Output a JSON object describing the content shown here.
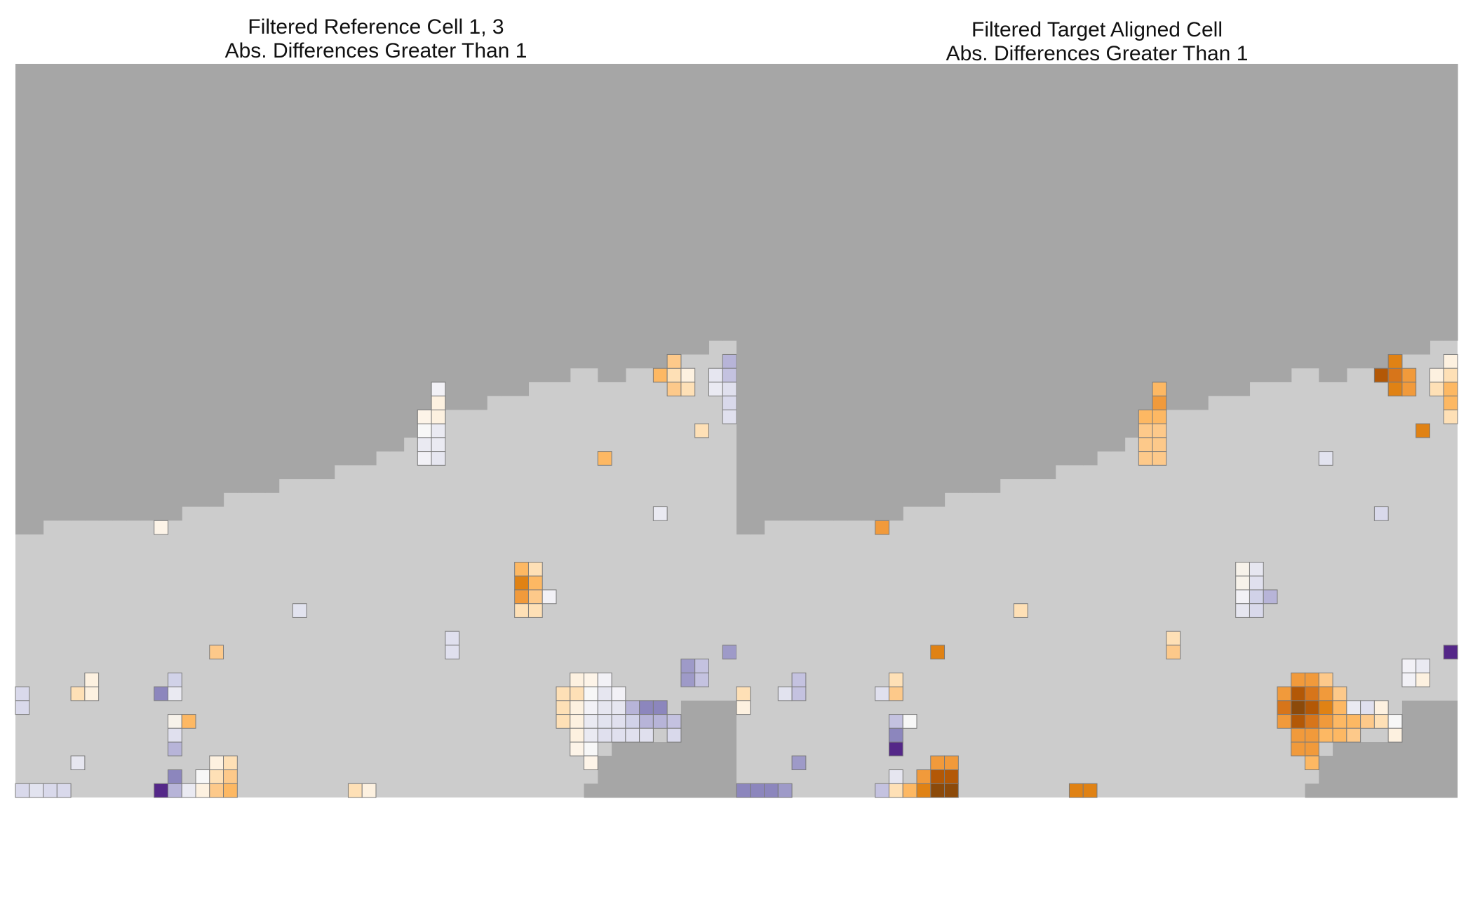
{
  "chart_data": [
    {
      "type": "heatmap",
      "title": [
        "Filtered Reference Cell 1, 3",
        "Abs. Differences Greater Than 1"
      ],
      "ncols": 52,
      "nrows": 53,
      "colors": {
        "outside": "#a6a6a6",
        "within": "#cccccc",
        "cell_border": "#7a7a7a"
      },
      "outside_profile": [
        34,
        34,
        33,
        33,
        33,
        33,
        33,
        33,
        33,
        33,
        33,
        33,
        32,
        32,
        32,
        31,
        31,
        31,
        31,
        30,
        30,
        30,
        30,
        29,
        29,
        29,
        28,
        28,
        27,
        26,
        26,
        25,
        25,
        25,
        24,
        24,
        24,
        23,
        23,
        23,
        22,
        22,
        23,
        23,
        22,
        22,
        22,
        22,
        21,
        21,
        20,
        20
      ],
      "bottom_outside": [
        [
          41,
          51,
          52
        ],
        [
          42,
          51,
          50
        ],
        [
          43,
          51,
          49
        ],
        [
          44,
          51,
          49
        ],
        [
          45,
          51,
          49
        ],
        [
          46,
          51,
          49
        ],
        [
          47,
          51,
          48
        ],
        [
          48,
          51,
          46
        ]
      ],
      "cells": [
        [
          0,
          45,
          "#d9d9eb"
        ],
        [
          0,
          46,
          "#d9d9eb"
        ],
        [
          4,
          45,
          "#fee0b6"
        ],
        [
          5,
          45,
          "#fdf1e0"
        ],
        [
          5,
          44,
          "#fdf1e0"
        ],
        [
          0,
          52,
          "#d9d9eb"
        ],
        [
          1,
          52,
          "#e2e3ef"
        ],
        [
          2,
          52,
          "#d9d9eb"
        ],
        [
          3,
          52,
          "#d9d9eb"
        ],
        [
          4,
          50,
          "#e6e6f0"
        ],
        [
          10,
          33,
          "#fdf4e8"
        ],
        [
          10,
          45,
          "#8c86bd"
        ],
        [
          11,
          45,
          "#eaeaf2"
        ],
        [
          11,
          44,
          "#d1d2e8"
        ],
        [
          11,
          47,
          "#f7f2ea"
        ],
        [
          11,
          48,
          "#e0e0ee"
        ],
        [
          11,
          49,
          "#b7b4d8"
        ],
        [
          12,
          47,
          "#fdb863"
        ],
        [
          10,
          52,
          "#542788"
        ],
        [
          11,
          52,
          "#b7b4d8"
        ],
        [
          11,
          51,
          "#8c86bd"
        ],
        [
          12,
          52,
          "#eaeaf2"
        ],
        [
          13,
          52,
          "#fdf1e0"
        ],
        [
          13,
          51,
          "#f7f7f7"
        ],
        [
          14,
          52,
          "#fdc98a"
        ],
        [
          14,
          51,
          "#fee0b6"
        ],
        [
          14,
          50,
          "#fdf1e0"
        ],
        [
          15,
          52,
          "#fdb863"
        ],
        [
          15,
          51,
          "#fdc98a"
        ],
        [
          15,
          50,
          "#fee0b6"
        ],
        [
          14,
          42,
          "#fdc98a"
        ],
        [
          20,
          39,
          "#e2e3ef"
        ],
        [
          24,
          52,
          "#fee0b6"
        ],
        [
          25,
          52,
          "#fdf1e0"
        ],
        [
          29,
          25,
          "#fdf4e8"
        ],
        [
          30,
          25,
          "#fdf4e8"
        ],
        [
          29,
          26,
          "#f7f7f7"
        ],
        [
          30,
          26,
          "#eaeaf2"
        ],
        [
          29,
          27,
          "#eaeaf2"
        ],
        [
          30,
          27,
          "#eaeaf2"
        ],
        [
          29,
          28,
          "#f2f1f6"
        ],
        [
          30,
          28,
          "#e6e6f0"
        ],
        [
          30,
          25,
          "#fdf1e0"
        ],
        [
          30,
          24,
          "#fdf4e8"
        ],
        [
          30,
          25,
          "#fdf1e0"
        ],
        [
          30,
          24,
          "#fdf4e8"
        ],
        [
          30,
          25,
          "#fdf1e0"
        ],
        [
          29,
          25,
          "#fdf4e8"
        ],
        [
          30,
          25,
          "#fdf1e0"
        ],
        [
          30,
          25,
          "#fdf1e0"
        ],
        [
          30,
          23,
          "#f2f1f6"
        ],
        [
          30,
          24,
          "#fdf1e0"
        ],
        [
          31,
          41,
          "#e0e0ee"
        ],
        [
          31,
          42,
          "#e0e0ee"
        ],
        [
          36,
          36,
          "#fdb863"
        ],
        [
          36,
          37,
          "#e08214"
        ],
        [
          36,
          38,
          "#f19a3b"
        ],
        [
          36,
          39,
          "#fee0b6"
        ],
        [
          37,
          36,
          "#fee0b6"
        ],
        [
          37,
          37,
          "#fdb863"
        ],
        [
          37,
          38,
          "#fdc98a"
        ],
        [
          37,
          39,
          "#fee0b6"
        ],
        [
          38,
          38,
          "#f2f1f6"
        ],
        [
          42,
          28,
          "#fdb863"
        ],
        [
          39,
          45,
          "#fee0b6"
        ],
        [
          39,
          46,
          "#fee0b6"
        ],
        [
          39,
          47,
          "#fee0b6"
        ],
        [
          40,
          44,
          "#fdf1e0"
        ],
        [
          40,
          45,
          "#fee0b6"
        ],
        [
          40,
          46,
          "#fdf1e0"
        ],
        [
          40,
          47,
          "#fdf1e0"
        ],
        [
          40,
          48,
          "#fdf1e0"
        ],
        [
          40,
          49,
          "#fdf4e8"
        ],
        [
          41,
          44,
          "#fdf4e8"
        ],
        [
          41,
          45,
          "#f7f7f7"
        ],
        [
          41,
          46,
          "#f2f1f6"
        ],
        [
          41,
          47,
          "#eaeaf2"
        ],
        [
          41,
          48,
          "#eaeaf2"
        ],
        [
          41,
          49,
          "#f7f7f7"
        ],
        [
          41,
          50,
          "#fdf4e8"
        ],
        [
          42,
          44,
          "#f2f1f6"
        ],
        [
          42,
          45,
          "#e6e6f0"
        ],
        [
          42,
          46,
          "#e6e6f0"
        ],
        [
          42,
          47,
          "#e2e3ef"
        ],
        [
          42,
          48,
          "#e0e0ee"
        ],
        [
          43,
          45,
          "#f2f1f6"
        ],
        [
          43,
          46,
          "#e6e6f0"
        ],
        [
          43,
          47,
          "#e0e0ee"
        ],
        [
          43,
          48,
          "#e0e0ee"
        ],
        [
          44,
          46,
          "#b7b4d8"
        ],
        [
          44,
          47,
          "#d1d2e8"
        ],
        [
          44,
          48,
          "#e0e0ee"
        ],
        [
          45,
          46,
          "#8c86bd"
        ],
        [
          45,
          47,
          "#b7b4d8"
        ],
        [
          45,
          48,
          "#e0e0ee"
        ],
        [
          46,
          46,
          "#8c86bd"
        ],
        [
          46,
          47,
          "#b7b4d8"
        ],
        [
          47,
          47,
          "#c4c2e0"
        ],
        [
          47,
          48,
          "#d9d9eb"
        ],
        [
          46,
          22,
          "#fdb863"
        ],
        [
          47,
          22,
          "#fee0b6"
        ],
        [
          47,
          21,
          "#fdc98a"
        ],
        [
          47,
          23,
          "#fdc98a"
        ],
        [
          48,
          22,
          "#fdf1e0"
        ],
        [
          48,
          23,
          "#fee0b6"
        ],
        [
          46,
          32,
          "#eaeaf2"
        ],
        [
          48,
          43,
          "#9e9ac8"
        ],
        [
          49,
          43,
          "#c4c2e0"
        ],
        [
          48,
          44,
          "#9e9ac8"
        ],
        [
          49,
          44,
          "#c4c2e0"
        ],
        [
          49,
          26,
          "#fee0b6"
        ],
        [
          51,
          42,
          "#9e9ac8"
        ],
        [
          50,
          22,
          "#e6e6f0"
        ],
        [
          50,
          23,
          "#eaeaf2"
        ],
        [
          51,
          21,
          "#b7b4d8"
        ],
        [
          51,
          22,
          "#c4c2e0"
        ],
        [
          51,
          23,
          "#e0e0ee"
        ],
        [
          51,
          24,
          "#d9d9eb"
        ],
        [
          51,
          25,
          "#e0e0ee"
        ]
      ]
    },
    {
      "type": "heatmap",
      "title": [
        "Filtered Target Aligned Cell",
        "Abs. Differences Greater Than 1"
      ],
      "ncols": 52,
      "nrows": 53,
      "colors": {
        "outside": "#a6a6a6",
        "within": "#cccccc",
        "cell_border": "#7a7a7a"
      },
      "outside_profile": [
        34,
        34,
        33,
        33,
        33,
        33,
        33,
        33,
        33,
        33,
        33,
        33,
        32,
        32,
        32,
        31,
        31,
        31,
        31,
        30,
        30,
        30,
        30,
        29,
        29,
        29,
        28,
        28,
        27,
        26,
        26,
        25,
        25,
        25,
        24,
        24,
        24,
        23,
        23,
        23,
        22,
        22,
        23,
        23,
        22,
        22,
        22,
        22,
        21,
        21,
        20,
        20
      ],
      "bottom_outside": [
        [
          41,
          51,
          52
        ],
        [
          42,
          51,
          50
        ],
        [
          43,
          51,
          49
        ],
        [
          44,
          51,
          49
        ],
        [
          45,
          51,
          49
        ],
        [
          46,
          51,
          49
        ],
        [
          47,
          51,
          48
        ],
        [
          48,
          51,
          46
        ]
      ],
      "cells": [
        [
          0,
          45,
          "#fee0b6"
        ],
        [
          0,
          46,
          "#fdf1e0"
        ],
        [
          3,
          45,
          "#e2e3ef"
        ],
        [
          4,
          45,
          "#c4c2e0"
        ],
        [
          4,
          44,
          "#c4c2e0"
        ],
        [
          0,
          52,
          "#8c86bd"
        ],
        [
          1,
          52,
          "#8c86bd"
        ],
        [
          2,
          52,
          "#8c86bd"
        ],
        [
          3,
          52,
          "#9e9ac8"
        ],
        [
          4,
          50,
          "#9e9ac8"
        ],
        [
          10,
          33,
          "#f19a3b"
        ],
        [
          10,
          45,
          "#e0e0ee"
        ],
        [
          11,
          45,
          "#fdc98a"
        ],
        [
          11,
          44,
          "#fee0b6"
        ],
        [
          11,
          47,
          "#c4c2e0"
        ],
        [
          12,
          47,
          "#f7f7f7"
        ],
        [
          11,
          48,
          "#8c86bd"
        ],
        [
          11,
          49,
          "#542788"
        ],
        [
          10,
          52,
          "#c4c2e0"
        ],
        [
          11,
          52,
          "#fee0b6"
        ],
        [
          11,
          51,
          "#e6e6f0"
        ],
        [
          12,
          52,
          "#fdb863"
        ],
        [
          13,
          52,
          "#e08214"
        ],
        [
          13,
          51,
          "#f19a3b"
        ],
        [
          14,
          52,
          "#8c4a0a"
        ],
        [
          14,
          51,
          "#b35806"
        ],
        [
          14,
          50,
          "#f19a3b"
        ],
        [
          15,
          52,
          "#8c4a0a"
        ],
        [
          15,
          51,
          "#b35806"
        ],
        [
          15,
          50,
          "#f19a3b"
        ],
        [
          14,
          42,
          "#e08214"
        ],
        [
          20,
          39,
          "#fee0b6"
        ],
        [
          24,
          52,
          "#e08214"
        ],
        [
          25,
          52,
          "#e08214"
        ],
        [
          29,
          25,
          "#fdb863"
        ],
        [
          30,
          25,
          "#fdb863"
        ],
        [
          29,
          26,
          "#fdc98a"
        ],
        [
          30,
          26,
          "#fdc98a"
        ],
        [
          29,
          27,
          "#fdc98a"
        ],
        [
          30,
          27,
          "#fdc98a"
        ],
        [
          29,
          28,
          "#fdc98a"
        ],
        [
          30,
          28,
          "#fdc98a"
        ],
        [
          30,
          23,
          "#fdb863"
        ],
        [
          30,
          24,
          "#f19a3b"
        ],
        [
          31,
          41,
          "#fee0b6"
        ],
        [
          31,
          42,
          "#fdc98a"
        ],
        [
          36,
          36,
          "#f7f2ea"
        ],
        [
          36,
          37,
          "#f7f2ea"
        ],
        [
          36,
          38,
          "#f2f1f6"
        ],
        [
          36,
          39,
          "#e6e6f0"
        ],
        [
          37,
          36,
          "#e6e6f0"
        ],
        [
          37,
          37,
          "#e0e0ee"
        ],
        [
          37,
          38,
          "#d1d2e8"
        ],
        [
          37,
          39,
          "#d9d9eb"
        ],
        [
          38,
          38,
          "#b7b4d8"
        ],
        [
          42,
          28,
          "#e2e3ef"
        ],
        [
          39,
          45,
          "#f19a3b"
        ],
        [
          39,
          46,
          "#d7751a"
        ],
        [
          39,
          47,
          "#f19a3b"
        ],
        [
          40,
          44,
          "#f19a3b"
        ],
        [
          40,
          45,
          "#b35806"
        ],
        [
          40,
          46,
          "#8c4a0a"
        ],
        [
          40,
          47,
          "#b35806"
        ],
        [
          40,
          48,
          "#f19a3b"
        ],
        [
          40,
          49,
          "#f19a3b"
        ],
        [
          41,
          44,
          "#f19a3b"
        ],
        [
          41,
          45,
          "#d7751a"
        ],
        [
          41,
          46,
          "#b35806"
        ],
        [
          41,
          47,
          "#d7751a"
        ],
        [
          41,
          48,
          "#f19a3b"
        ],
        [
          41,
          49,
          "#f19a3b"
        ],
        [
          41,
          50,
          "#fdb863"
        ],
        [
          42,
          44,
          "#fdc98a"
        ],
        [
          42,
          45,
          "#f19a3b"
        ],
        [
          42,
          46,
          "#e08214"
        ],
        [
          42,
          47,
          "#f19a3b"
        ],
        [
          42,
          48,
          "#fdb863"
        ],
        [
          43,
          45,
          "#fdc98a"
        ],
        [
          43,
          46,
          "#fdb863"
        ],
        [
          43,
          47,
          "#fdb863"
        ],
        [
          43,
          48,
          "#fdb863"
        ],
        [
          44,
          46,
          "#eaeaf2"
        ],
        [
          44,
          47,
          "#fdb863"
        ],
        [
          44,
          48,
          "#fdc98a"
        ],
        [
          45,
          46,
          "#e0e0ee"
        ],
        [
          45,
          47,
          "#fdc98a"
        ],
        [
          46,
          46,
          "#fdf1e0"
        ],
        [
          46,
          47,
          "#fee0b6"
        ],
        [
          47,
          47,
          "#f7f7f7"
        ],
        [
          47,
          48,
          "#fdf1e0"
        ],
        [
          46,
          22,
          "#b35806"
        ],
        [
          47,
          22,
          "#d7751a"
        ],
        [
          47,
          21,
          "#e08214"
        ],
        [
          47,
          23,
          "#e08214"
        ],
        [
          48,
          22,
          "#f19a3b"
        ],
        [
          48,
          23,
          "#f19a3b"
        ],
        [
          46,
          32,
          "#d9d9eb"
        ],
        [
          48,
          43,
          "#f2f1f6"
        ],
        [
          49,
          43,
          "#eaeaf2"
        ],
        [
          48,
          44,
          "#f2f1f6"
        ],
        [
          49,
          44,
          "#fdf1e0"
        ],
        [
          49,
          26,
          "#e08214"
        ],
        [
          51,
          42,
          "#542788"
        ],
        [
          50,
          22,
          "#fdf1e0"
        ],
        [
          50,
          23,
          "#fee0b6"
        ],
        [
          51,
          21,
          "#fdf1e0"
        ],
        [
          51,
          22,
          "#fee0b6"
        ],
        [
          51,
          23,
          "#fdb863"
        ],
        [
          51,
          24,
          "#fdb863"
        ],
        [
          51,
          25,
          "#fee0b6"
        ]
      ]
    }
  ]
}
